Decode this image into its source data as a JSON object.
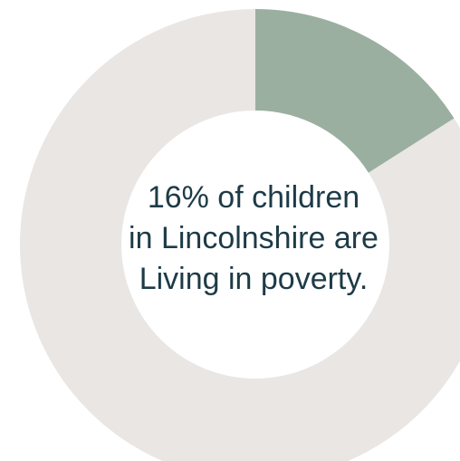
{
  "chart_data": {
    "type": "pie",
    "variant": "donut",
    "slices": [
      {
        "value": 16,
        "color": "#9aafa0"
      },
      {
        "value": 84,
        "color": "#e9e6e4"
      }
    ],
    "annotation": {
      "lines": [
        "16% of children",
        "in Lincolnshire are",
        "Living in poverty."
      ]
    }
  }
}
